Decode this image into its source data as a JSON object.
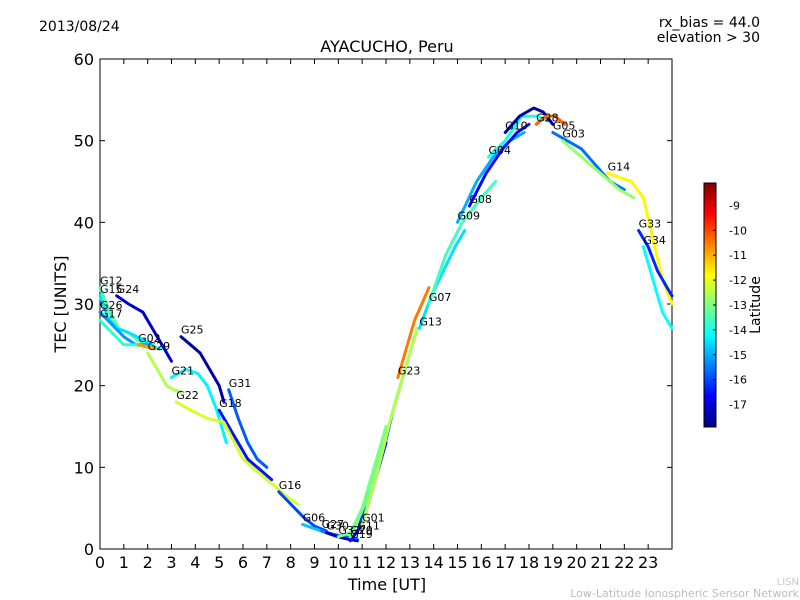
{
  "header": {
    "date": "2013/08/24",
    "rx_bias": "rx_bias = 44.0",
    "elevation": "elevation > 30"
  },
  "footer": {
    "org_short": "LISN",
    "org_full": "Low-Latitude Ionospheric Sensor Network"
  },
  "chart_data": {
    "type": "scatter",
    "title": "AYACUCHO, Peru",
    "xlabel": "Time [UT]",
    "ylabel": "TEC [UNITS]",
    "xlim": [
      0,
      24
    ],
    "ylim": [
      0,
      60
    ],
    "xticks": [
      "0",
      "1",
      "2",
      "3",
      "4",
      "5",
      "6",
      "7",
      "8",
      "9",
      "10",
      "11",
      "12",
      "13",
      "14",
      "15",
      "16",
      "17",
      "18",
      "19",
      "20",
      "21",
      "22",
      "23"
    ],
    "yticks": [
      "0",
      "10",
      "20",
      "30",
      "40",
      "50",
      "60"
    ],
    "colorbar": {
      "label": "Latitude",
      "range": [
        -17.9,
        -8.1
      ],
      "ticks": [
        "-9",
        "-10",
        "-11",
        "-12",
        "-13",
        "-14",
        "-15",
        "-16",
        "-17"
      ],
      "colors": [
        "#00007f",
        "#0000ff",
        "#007fff",
        "#00ffff",
        "#7fff7f",
        "#ffff00",
        "#ff7f00",
        "#ff0000",
        "#7f0000"
      ]
    },
    "series": [
      {
        "name": "G12",
        "lat": -13.5,
        "x": [
          0,
          0.4,
          0.8,
          1.2,
          1.6,
          2.0
        ],
        "y": [
          32,
          29,
          27,
          26.5,
          25.5,
          25
        ]
      },
      {
        "name": "G15",
        "lat": -14.5,
        "x": [
          0,
          0.3,
          0.7,
          1.2,
          1.7,
          2.2
        ],
        "y": [
          31,
          28.5,
          27,
          26.5,
          25.8,
          25
        ]
      },
      {
        "name": "G26",
        "lat": -15.2,
        "x": [
          0,
          0.5,
          1.0,
          1.5,
          2.0,
          2.5
        ],
        "y": [
          29,
          27.5,
          26,
          25,
          25,
          24.5
        ]
      },
      {
        "name": "G17",
        "lat": -13.8,
        "x": [
          0,
          0.5,
          1.0,
          1.5,
          2.0,
          2.6
        ],
        "y": [
          28,
          26.5,
          25,
          25,
          24.8,
          24.5
        ]
      },
      {
        "name": "G24",
        "lat": -17.2,
        "x": [
          0.7,
          1.2,
          1.8,
          2.2,
          2.6,
          3.0
        ],
        "y": [
          31,
          30,
          29,
          27,
          25,
          23
        ]
      },
      {
        "name": "G29",
        "lat": -12.5,
        "x": [
          2.0,
          2.4,
          2.8,
          3.1,
          3.4
        ],
        "y": [
          24,
          22,
          20,
          19.5,
          19.2
        ]
      },
      {
        "name": "G02",
        "lat": -10.8,
        "x": [
          1.6,
          1.9,
          2.3
        ],
        "y": [
          25,
          24.8,
          24.5
        ]
      },
      {
        "name": "G25",
        "lat": -17.5,
        "x": [
          3.4,
          3.8,
          4.2,
          4.6,
          5.0,
          5.2
        ],
        "y": [
          26,
          25,
          24,
          22,
          20,
          18
        ]
      },
      {
        "name": "G21",
        "lat": -14.3,
        "x": [
          3.0,
          3.6,
          4.1,
          4.5,
          4.9,
          5.3
        ],
        "y": [
          21,
          22,
          21.5,
          20,
          17,
          13
        ]
      },
      {
        "name": "G31",
        "lat": -15.8,
        "x": [
          5.4,
          5.8,
          6.2,
          6.6,
          7.0
        ],
        "y": [
          19.5,
          16,
          13,
          11,
          10
        ]
      },
      {
        "name": "G18",
        "lat": -16.5,
        "x": [
          5.0,
          5.6,
          6.2,
          6.8,
          7.2
        ],
        "y": [
          17,
          14,
          11,
          9.5,
          8.5
        ]
      },
      {
        "name": "G22",
        "lat": -12.2,
        "x": [
          3.2,
          3.8,
          4.5,
          5.2,
          6.0,
          7.0,
          7.8,
          8.3
        ],
        "y": [
          18,
          17,
          16,
          15.5,
          11,
          8.5,
          6.5,
          5.5
        ]
      },
      {
        "name": "G16",
        "lat": -16.0,
        "x": [
          7.5,
          8.0,
          8.5,
          9.0,
          9.5
        ],
        "y": [
          7,
          5.5,
          4,
          2.8,
          2.2
        ]
      },
      {
        "name": "G06",
        "lat": -14.8,
        "x": [
          8.5,
          9.0,
          9.5,
          10.0
        ],
        "y": [
          3,
          2.5,
          2,
          1.5
        ]
      },
      {
        "name": "G27",
        "lat": -15.5,
        "x": [
          9.3,
          9.8,
          10.3,
          10.8
        ],
        "y": [
          2.2,
          1.8,
          1.5,
          1.2
        ]
      },
      {
        "name": "G30",
        "lat": -17.3,
        "x": [
          9.5,
          10.0,
          10.4,
          10.8
        ],
        "y": [
          2,
          1.5,
          1.2,
          1
        ]
      },
      {
        "name": "G32",
        "lat": -13.0,
        "x": [
          10.0,
          10.5,
          11.0,
          11.5,
          12.0
        ],
        "y": [
          1.5,
          2,
          5,
          10,
          15
        ]
      },
      {
        "name": "G19",
        "lat": -16.8,
        "x": [
          10.5,
          11.0,
          11.5,
          12.0
        ],
        "y": [
          1,
          3,
          8,
          13
        ]
      },
      {
        "name": "G11",
        "lat": -16.2,
        "x": [
          10.8,
          11.3,
          11.8,
          12.3,
          12.8
        ],
        "y": [
          2,
          7,
          11,
          17,
          22
        ]
      },
      {
        "name": "G20",
        "lat": -13.2,
        "x": [
          10.5,
          11.2,
          11.8,
          12.3,
          12.8,
          13.3
        ],
        "y": [
          1.5,
          6,
          12,
          17,
          22,
          27
        ]
      },
      {
        "name": "G01",
        "lat": -12.5,
        "x": [
          11.0,
          11.6,
          12.2,
          12.8,
          13.3
        ],
        "y": [
          3,
          9,
          16,
          22,
          27
        ]
      },
      {
        "name": "G23",
        "lat": -10.5,
        "x": [
          12.5,
          12.9,
          13.2,
          13.5,
          13.8
        ],
        "y": [
          21,
          25,
          28,
          30,
          32
        ]
      },
      {
        "name": "G13",
        "lat": -14.5,
        "x": [
          13.4,
          13.9,
          14.4,
          14.9,
          15.3
        ],
        "y": [
          27,
          31,
          34,
          37,
          39
        ]
      },
      {
        "name": "G07",
        "lat": -13.6,
        "x": [
          13.8,
          14.5,
          15.2,
          16.0,
          16.6
        ],
        "y": [
          30,
          36,
          40,
          43,
          45
        ]
      },
      {
        "name": "G09",
        "lat": -15.0,
        "x": [
          15.0,
          15.8,
          16.5,
          17.2,
          17.8
        ],
        "y": [
          40,
          45,
          48,
          50,
          51
        ]
      },
      {
        "name": "G08",
        "lat": -16.6,
        "x": [
          15.5,
          16.2,
          16.9,
          17.5,
          18.0
        ],
        "y": [
          42,
          46,
          49,
          51,
          52
        ]
      },
      {
        "name": "G04",
        "lat": -14.0,
        "x": [
          16.3,
          17.0,
          17.7,
          18.3,
          18.8
        ],
        "y": [
          48,
          50,
          53,
          53,
          52.5
        ]
      },
      {
        "name": "G10",
        "lat": -17.5,
        "x": [
          17.0,
          17.6,
          18.2,
          18.6,
          19.0
        ],
        "y": [
          51,
          53,
          54,
          53.5,
          52
        ]
      },
      {
        "name": "G28",
        "lat": -10.3,
        "x": [
          18.3,
          18.7,
          19.1,
          19.5
        ],
        "y": [
          52,
          53,
          53,
          52
        ]
      },
      {
        "name": "G05",
        "lat": -15.6,
        "x": [
          19.0,
          19.6,
          20.2,
          20.8,
          21.4,
          22.0
        ],
        "y": [
          51,
          50,
          49,
          47,
          45,
          44
        ]
      },
      {
        "name": "G03",
        "lat": -12.8,
        "x": [
          19.4,
          20.0,
          20.6,
          21.2,
          21.8,
          22.4
        ],
        "y": [
          50,
          48.5,
          47,
          45.5,
          44,
          43
        ]
      },
      {
        "name": "G14",
        "lat": -11.7,
        "x": [
          21.3,
          21.8,
          22.3,
          22.8,
          23.2,
          23.6,
          24.0
        ],
        "y": [
          46,
          45.5,
          45,
          43,
          38,
          33,
          30
        ]
      },
      {
        "name": "G33",
        "lat": -16.3,
        "x": [
          22.6,
          23.0,
          23.4,
          23.8,
          24.0
        ],
        "y": [
          39,
          37,
          34,
          32,
          31
        ]
      },
      {
        "name": "G34",
        "lat": -14.2,
        "x": [
          22.8,
          23.2,
          23.6,
          24.0
        ],
        "y": [
          37,
          33,
          29,
          27
        ]
      }
    ]
  }
}
